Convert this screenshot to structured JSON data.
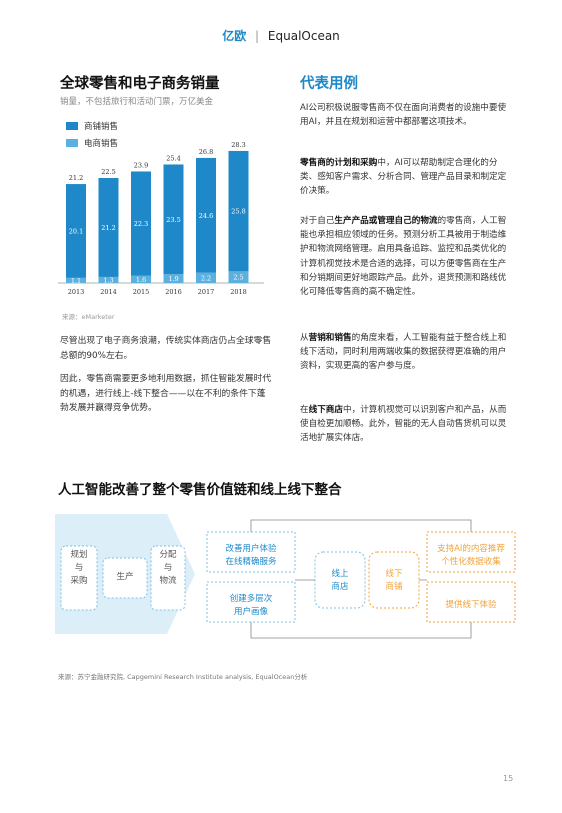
{
  "header": {
    "logo_cn": "亿欧",
    "logo_sep": "|",
    "logo_en": "EqualOcean"
  },
  "left": {
    "title": "全球零售和电子商务销量",
    "subtitle": "销量，不包括旅行和活动门票，万亿美金",
    "source": "来源：eMarketer",
    "paragraphs": [
      "尽管出现了电子商务浪潮，传统实体商店仍占全球零售总额的90%左右。",
      "因此，零售商需要更多地利用数据，抓住智能发展时代的机遇，进行线上-线下整合——以在不利的条件下蓬勃发展并赢得竞争优势。"
    ]
  },
  "chart_data": {
    "type": "bar",
    "stacked": true,
    "categories": [
      "2013",
      "2014",
      "2015",
      "2016",
      "2017",
      "2018"
    ],
    "series": [
      {
        "name": "商铺销售",
        "values": [
          20.1,
          21.2,
          22.3,
          23.5,
          24.6,
          25.8
        ],
        "color": "#1e88c8"
      },
      {
        "name": "电商销售",
        "values": [
          1.1,
          1.3,
          1.6,
          1.9,
          2.2,
          2.5
        ],
        "color": "#5bb0de"
      }
    ],
    "totals": [
      21.2,
      22.5,
      23.9,
      25.4,
      26.8,
      28.3
    ],
    "legend_position": "top-left",
    "grid": false
  },
  "right": {
    "title": "代表用例",
    "p1": "AI公司积极说服零售商不仅在面向消费者的设施中要使用AI，并且在规划和运营中都部署这项技术。",
    "p2_bold": "零售商的计划和采购",
    "p2_rest": "中，AI可以帮助制定合理化的分类、感知客户需求、分析合同、管理产品目录和制定定价决策。",
    "p3_pre": "对于自己",
    "p3_bold": "生产产品或管理自己的物流",
    "p3_rest": "的零售商，人工智能也承担相应领域的任务。预测分析工具被用于制造维护和物流网络管理。启用具备追踪、监控和品类优化的计算机视觉技术是合适的选择，可以方便零售商在生产和分销期间更好地跟踪产品。此外，退货预测和路线优化可降低零售商的高不确定性。",
    "p4_pre": "从",
    "p4_bold": "营销和销售",
    "p4_rest": "的角度来看，人工智能有益于整合线上和线下活动，同时利用两端收集的数据获得更准确的用户资料，实现更高的客户参与度。",
    "p5_pre": "在",
    "p5_bold": "线下商店",
    "p5_rest": "中，计算机视觉可以识别客户和产品，从而使自检更加顺畅。此外，智能的无人自动售货机可以灵活地扩展实体店。"
  },
  "diagram": {
    "title": "人工智能改善了整个零售价值链和线上线下整合",
    "chain": [
      "规划\n与\n采购",
      "生产",
      "分配\n与\n物流"
    ],
    "left_boxes": [
      "改善用户体验\n在线精确服务",
      "创建多层次\n用户画像"
    ],
    "online": "线上\n商店",
    "offline": "线下\n商铺",
    "right_boxes": [
      "支持AI的内容推荐\n个性化数据收集",
      "提供线下体验"
    ],
    "source": "来源：苏宁金融研究院, Capgemini Research Institute analysis, EqualOcean分析"
  },
  "page_number": "15"
}
